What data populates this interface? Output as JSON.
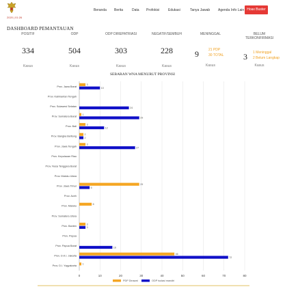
{
  "header": {
    "date_text": "2020 | 01:26",
    "nav": [
      "Beranda",
      "Berita",
      "Data",
      "Profokisi",
      "Edukasi",
      "Tanya Jawab",
      "Agenda",
      "Info Lain"
    ],
    "hoax_label": "Hoax Buster",
    "colors": {
      "hoax_button": "#e53935",
      "accent": "#f0a020"
    }
  },
  "dashboard": {
    "title": "DASHBOARD PEMANTAUAN",
    "stats": [
      {
        "label": "POSITIF",
        "value": "334",
        "unit": "Kasus"
      },
      {
        "label": "ODP",
        "value": "504",
        "unit": "Kasus"
      },
      {
        "label": "ODP DIREPATRIASI",
        "value": "303",
        "unit": "Kasus"
      },
      {
        "label": "NEGATIF/SEMBUH",
        "value": "228",
        "unit": "Kasus"
      },
      {
        "label": "MENINGGAL",
        "value": "9",
        "unit": "Kasus",
        "detail_a": "21 PDP",
        "detail_b": "30 TOTAL"
      },
      {
        "label_line1": "BELUM",
        "label_line2": "TERKONFIRMASI",
        "value": "3",
        "unit": "Kasus",
        "detail_a": "1 Meninggal",
        "detail_b": "2 Belum Langkap"
      }
    ]
  },
  "chart_data": {
    "type": "bar",
    "orientation": "horizontal",
    "title": "SEBARAN WNA MENURUT PROVINSI",
    "categories": [
      "Prov. Jawa Barat",
      "Prov. Kalimantan Tengah",
      "Prov. Sulawesi Selatan",
      "Prov. Sumatera Barat",
      "Prov. Bali",
      "Prov. Bangka Belitung",
      "Prov. Jawa Tengah",
      "Prov. Kepulauan Riau",
      "Prov. Nusa Tenggara Barat",
      "Prov. Maluku Utara",
      "Prov. Jawa Timur",
      "Prov. Aceh",
      "Prov. Maluku",
      "Prov. Sumatera Utara",
      "Prov. Banten",
      "Prov. Papua",
      "Prov. Papua Barat",
      "Prov. D.K.I. Jakarta",
      "Prov. D.I. Yogyakarta"
    ],
    "series": [
      {
        "name": "PDP Dirawat",
        "color": "#f5a623",
        "values": [
          3,
          0,
          0,
          1,
          3,
          2,
          3,
          0,
          0,
          0,
          29,
          0,
          6,
          0,
          3,
          0,
          0,
          46,
          1
        ]
      },
      {
        "name": "ODP isolasi mandiri",
        "color": "#1010c8",
        "values": [
          10,
          0,
          24,
          29,
          12,
          2,
          27,
          0,
          0,
          0,
          5,
          0,
          0,
          0,
          3,
          0,
          16,
          72,
          0
        ]
      }
    ],
    "ticks": [
      "0",
      "10",
      "20",
      "30",
      "40",
      "50",
      "60",
      "70",
      "80"
    ],
    "xlim": [
      0,
      80
    ],
    "grid": true,
    "legend": "bottom"
  }
}
